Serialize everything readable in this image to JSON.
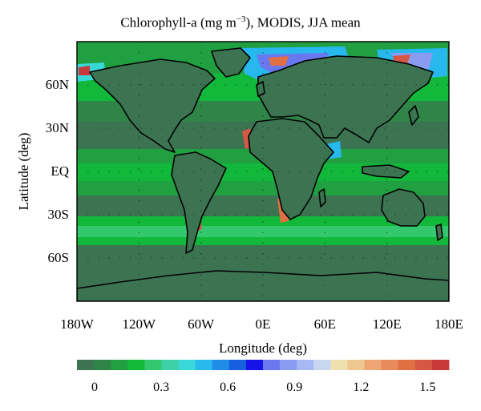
{
  "title_main": "Chlorophyll-a (mg m",
  "title_exp": "−3",
  "title_tail": "), MODIS, JJA mean",
  "ylabel": "Latitude (deg)",
  "xlabel": "Longitude (deg)",
  "x_ticks": [
    "180W",
    "120W",
    "60W",
    "0E",
    "60E",
    "120E",
    "180E"
  ],
  "y_ticks": [
    "60N",
    "30N",
    "EQ",
    "30S",
    "60S"
  ],
  "colorbar": {
    "ticks": [
      "0",
      "0.3",
      "0.6",
      "0.9",
      "1.2",
      "1.5"
    ],
    "colors": [
      "#3c7452",
      "#2f8548",
      "#20a040",
      "#11b83a",
      "#33c86e",
      "#3ed0a6",
      "#39d8d8",
      "#27b8ee",
      "#1f8de8",
      "#1660e0",
      "#1414e6",
      "#6a78f0",
      "#8a9cf2",
      "#a8b8f4",
      "#c8d6f0",
      "#f0e0b0",
      "#efc690",
      "#eda674",
      "#e98a5c",
      "#e07044",
      "#d65844",
      "#c83a3a"
    ]
  },
  "chart_data": {
    "type": "heatmap",
    "title": "Chlorophyll-a (mg m−3), MODIS, JJA mean",
    "xlabel": "Longitude (deg)",
    "ylabel": "Latitude (deg)",
    "xlim": [
      -180,
      180
    ],
    "ylim": [
      -90,
      90
    ],
    "colorbar_range": [
      0,
      1.6
    ],
    "colorbar_ticks": [
      0,
      0.3,
      0.6,
      0.9,
      1.2,
      1.5
    ],
    "grid": "dotted",
    "features": [
      "coastlines",
      "land masked dark green"
    ]
  }
}
